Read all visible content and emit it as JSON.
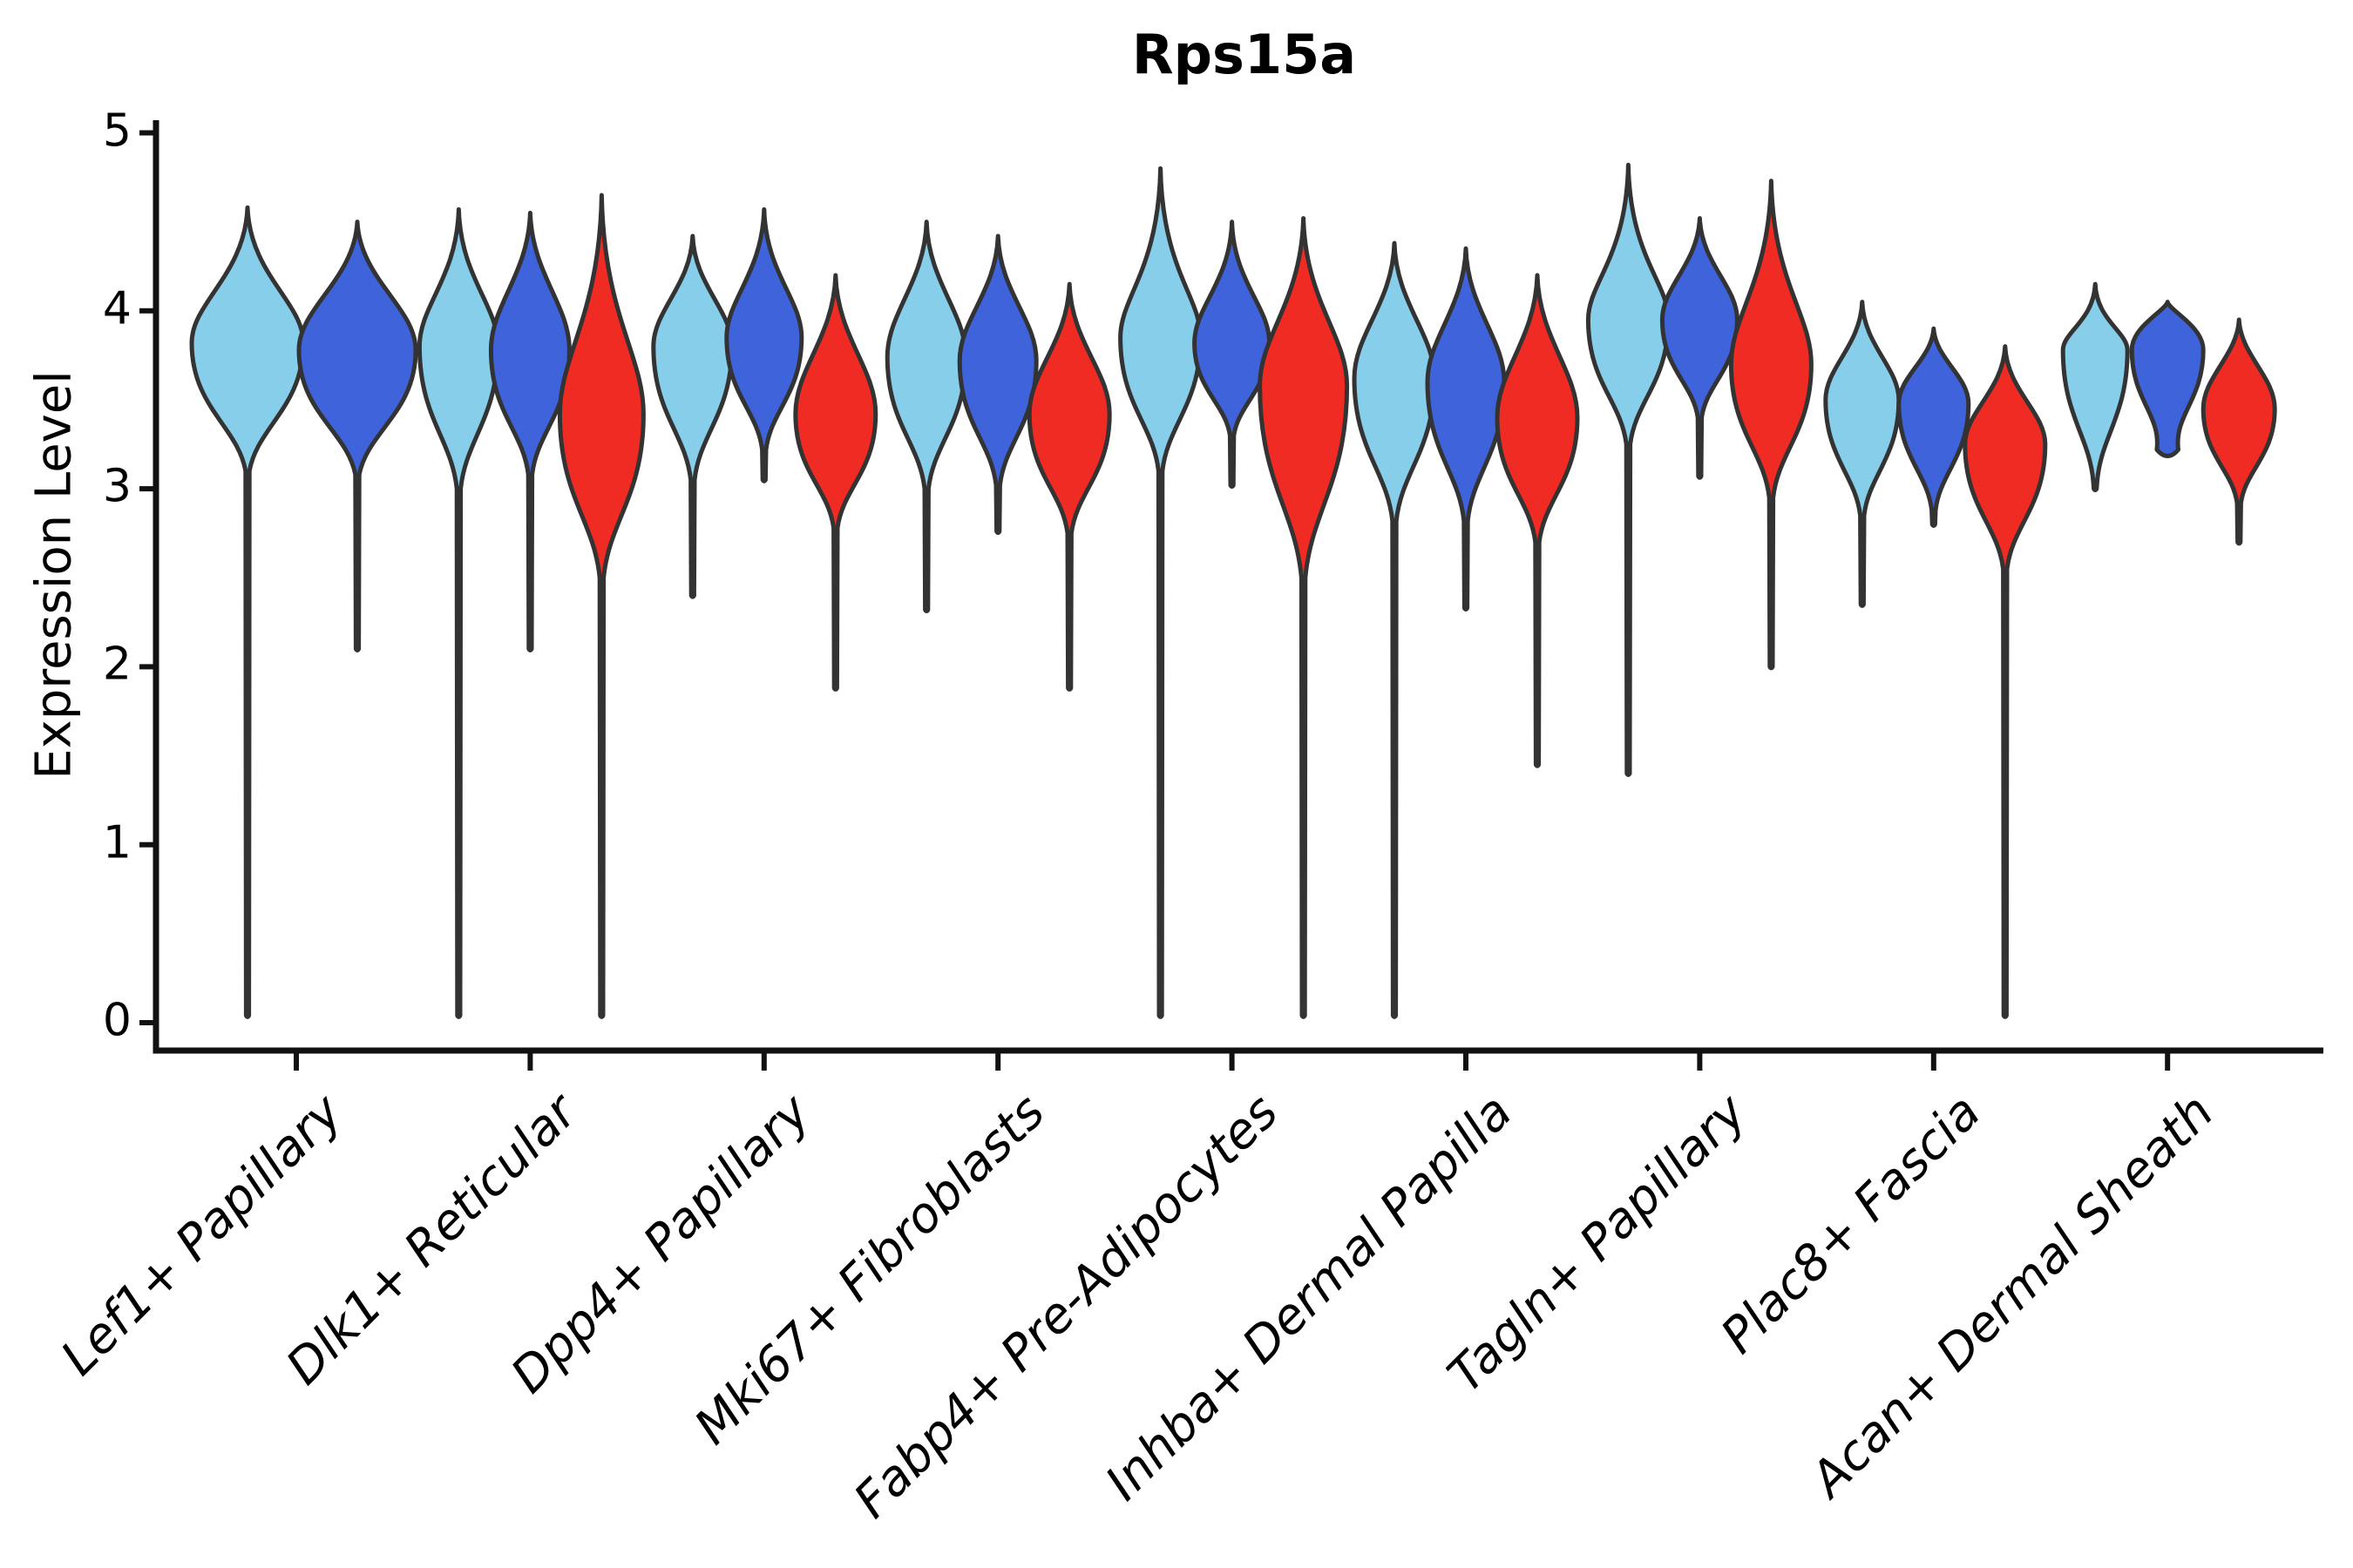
{
  "title": "Rps15a",
  "ylabel": "Expression Level",
  "background_color": "#ffffff",
  "axis_color": "#111111",
  "violin_outline_color": "#333333",
  "chart_data": {
    "type": "violin",
    "title": "Rps15a",
    "xlabel": "",
    "ylabel": "Expression Level",
    "ylim": [
      0,
      5
    ],
    "yticks": [
      "0",
      "1",
      "2",
      "3",
      "4",
      "5"
    ],
    "grid": false,
    "legend": "none",
    "categories": [
      "Lef1+ Papillary",
      "Dlk1+ Reticular",
      "Dpp4+ Papillary",
      "Mki67+ Fibroblasts",
      "Fabp4+ Pre-Adipocytes",
      "Inhba+ Dermal Papilla",
      "Tagln+ Papillary",
      "Plac8+ Fascia",
      "Acan+ Dermal Sheath"
    ],
    "series": [
      {
        "key": "skyblue",
        "color": "#87CEEB"
      },
      {
        "key": "royalblue",
        "color": "#3E63DB"
      },
      {
        "key": "red",
        "color": "#EF2B24"
      }
    ],
    "groups": [
      {
        "category": "Lef1+ Papillary",
        "violins": [
          {
            "series": "skyblue",
            "offset": -56,
            "halfwidth": 64,
            "max": 4.58,
            "peak": 3.82,
            "body_min": 3.1,
            "min": 0.04,
            "neck": 0.5
          },
          {
            "series": "royalblue",
            "offset": 70,
            "halfwidth": 67,
            "max": 4.5,
            "peak": 3.78,
            "body_min": 3.08,
            "min": 2.1,
            "neck": 0.45
          }
        ]
      },
      {
        "category": "Dlk1+ Reticular",
        "violins": [
          {
            "series": "skyblue",
            "offset": -82,
            "halfwidth": 45,
            "max": 4.57,
            "peak": 3.8,
            "body_min": 3.0,
            "min": 0.04,
            "neck": 0.5
          },
          {
            "series": "royalblue",
            "offset": 0,
            "halfwidth": 45,
            "max": 4.55,
            "peak": 3.78,
            "body_min": 3.08,
            "min": 2.1,
            "neck": 0.45
          },
          {
            "series": "red",
            "offset": 82,
            "halfwidth": 48,
            "max": 4.65,
            "peak": 3.42,
            "body_min": 2.5,
            "min": 0.04,
            "neck": 0.55
          }
        ]
      },
      {
        "category": "Dpp4+ Papillary",
        "violins": [
          {
            "series": "skyblue",
            "offset": -82,
            "halfwidth": 45,
            "max": 4.42,
            "peak": 3.8,
            "body_min": 3.05,
            "min": 2.4,
            "neck": 0.45
          },
          {
            "series": "royalblue",
            "offset": 0,
            "halfwidth": 43,
            "max": 4.57,
            "peak": 3.85,
            "body_min": 3.22,
            "min": 3.05,
            "neck": 0.5
          },
          {
            "series": "red",
            "offset": 82,
            "halfwidth": 46,
            "max": 4.2,
            "peak": 3.42,
            "body_min": 2.78,
            "min": 1.88,
            "neck": 0.45
          }
        ]
      },
      {
        "category": "Mki67+ Fibroblasts",
        "violins": [
          {
            "series": "skyblue",
            "offset": -82,
            "halfwidth": 45,
            "max": 4.5,
            "peak": 3.74,
            "body_min": 3.0,
            "min": 2.32,
            "neck": 0.45
          },
          {
            "series": "royalblue",
            "offset": 0,
            "halfwidth": 44,
            "max": 4.42,
            "peak": 3.72,
            "body_min": 3.02,
            "min": 2.76,
            "neck": 0.45
          },
          {
            "series": "red",
            "offset": 82,
            "halfwidth": 46,
            "max": 4.15,
            "peak": 3.42,
            "body_min": 2.75,
            "min": 1.88,
            "neck": 0.45
          }
        ]
      },
      {
        "category": "Fabp4+ Pre-Adipocytes",
        "violins": [
          {
            "series": "skyblue",
            "offset": -82,
            "halfwidth": 46,
            "max": 4.8,
            "peak": 3.85,
            "body_min": 3.1,
            "min": 0.04,
            "neck": 0.6
          },
          {
            "series": "royalblue",
            "offset": 0,
            "halfwidth": 43,
            "max": 4.5,
            "peak": 3.82,
            "body_min": 3.3,
            "min": 3.02,
            "neck": 0.5
          },
          {
            "series": "red",
            "offset": 82,
            "halfwidth": 50,
            "max": 4.52,
            "peak": 3.58,
            "body_min": 2.5,
            "min": 0.04,
            "neck": 0.5
          }
        ]
      },
      {
        "category": "Inhba+ Dermal Papilla",
        "violins": [
          {
            "series": "skyblue",
            "offset": -82,
            "halfwidth": 46,
            "max": 4.38,
            "peak": 3.62,
            "body_min": 2.82,
            "min": 0.04,
            "neck": 0.45
          },
          {
            "series": "royalblue",
            "offset": 0,
            "halfwidth": 44,
            "max": 4.35,
            "peak": 3.6,
            "body_min": 2.82,
            "min": 2.33,
            "neck": 0.45
          },
          {
            "series": "red",
            "offset": 82,
            "halfwidth": 46,
            "max": 4.2,
            "peak": 3.4,
            "body_min": 2.7,
            "min": 1.45,
            "neck": 0.45
          }
        ]
      },
      {
        "category": "Tagln+ Papillary",
        "violins": [
          {
            "series": "skyblue",
            "offset": -82,
            "halfwidth": 46,
            "max": 4.82,
            "peak": 3.95,
            "body_min": 3.25,
            "min": 1.4,
            "neck": 0.6
          },
          {
            "series": "royalblue",
            "offset": 0,
            "halfwidth": 43,
            "max": 4.52,
            "peak": 3.95,
            "body_min": 3.4,
            "min": 3.07,
            "neck": 0.45
          },
          {
            "series": "red",
            "offset": 82,
            "halfwidth": 46,
            "max": 4.73,
            "peak": 3.7,
            "body_min": 2.95,
            "min": 2.0,
            "neck": 0.55
          }
        ]
      },
      {
        "category": "Plac8+ Fascia",
        "violins": [
          {
            "series": "skyblue",
            "offset": -82,
            "halfwidth": 42,
            "max": 4.05,
            "peak": 3.5,
            "body_min": 2.85,
            "min": 2.35,
            "neck": 0.45
          },
          {
            "series": "royalblue",
            "offset": 0,
            "halfwidth": 40,
            "max": 3.9,
            "peak": 3.48,
            "body_min": 2.88,
            "min": 2.8,
            "neck": 0.4
          },
          {
            "series": "red",
            "offset": 82,
            "halfwidth": 46,
            "max": 3.8,
            "peak": 3.25,
            "body_min": 2.55,
            "min": 0.04,
            "neck": 0.45
          }
        ]
      },
      {
        "category": "Acan+ Dermal Sheath",
        "violins": [
          {
            "series": "skyblue",
            "offset": -83,
            "halfwidth": 37,
            "max": 4.15,
            "peak": 3.78,
            "body_min": 3.04,
            "min": 3.0,
            "neck": 0.55,
            "blunt": 0.13
          },
          {
            "series": "royalblue",
            "offset": 0,
            "halfwidth": 41,
            "max": 4.05,
            "peak": 3.78,
            "body_min": 3.22,
            "min": 3.2,
            "neck": 0.18,
            "blunt": 0.3
          },
          {
            "series": "red",
            "offset": 82,
            "halfwidth": 41,
            "max": 3.95,
            "peak": 3.45,
            "body_min": 2.92,
            "min": 2.7,
            "neck": 0.4,
            "blunt": 0.05
          }
        ]
      }
    ]
  }
}
